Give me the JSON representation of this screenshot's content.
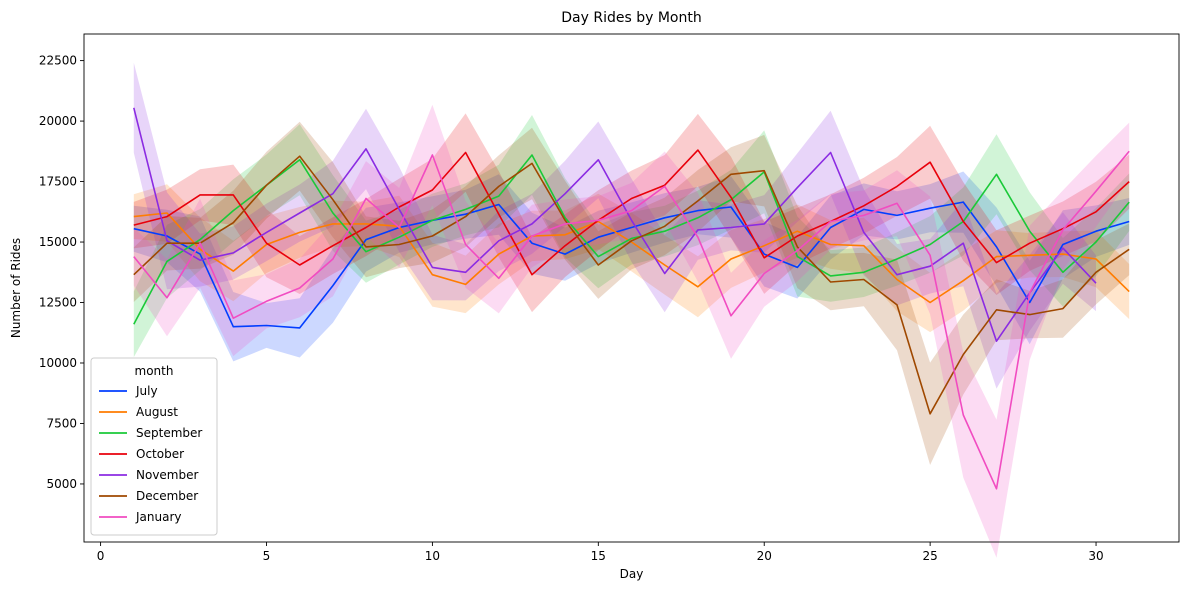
{
  "chart_data": {
    "type": "line",
    "title": "Day Rides by Month",
    "xlabel": "Day",
    "ylabel": "Number of Rides",
    "xlim": [
      -0.5,
      32.5
    ],
    "ylim": [
      2600,
      23600
    ],
    "xticks": [
      0,
      5,
      10,
      15,
      20,
      25,
      30
    ],
    "yticks": [
      5000,
      7500,
      10000,
      12500,
      15000,
      17500,
      20000,
      22500
    ],
    "grid": false,
    "legend": {
      "title": "month",
      "position": "lower-left"
    },
    "confidence_band": true,
    "series": [
      {
        "name": "July",
        "color": "#023eff",
        "x": [
          1,
          2,
          3,
          4,
          5,
          6,
          7,
          8,
          9,
          10,
          11,
          12,
          13,
          14,
          15,
          16,
          17,
          18,
          19,
          20,
          21,
          22,
          23,
          24,
          25,
          26,
          27,
          28,
          29,
          30,
          31
        ],
        "values": [
          15550,
          15250,
          14500,
          11500,
          11550,
          11450,
          13200,
          15100,
          15600,
          15900,
          16150,
          16550,
          14950,
          14500,
          15200,
          15600,
          16000,
          16300,
          16450,
          14500,
          13950,
          15600,
          16350,
          16100,
          16400,
          16650,
          14800,
          12500,
          14900,
          15450,
          15850
        ]
      },
      {
        "name": "August",
        "color": "#ff7c00",
        "x": [
          1,
          2,
          3,
          4,
          5,
          6,
          7,
          8,
          9,
          10,
          11,
          12,
          13,
          14,
          15,
          16,
          17,
          18,
          19,
          20,
          21,
          22,
          23,
          24,
          25,
          26,
          27,
          28,
          29,
          30,
          31
        ],
        "values": [
          16050,
          16200,
          14700,
          13800,
          14900,
          15400,
          15750,
          15750,
          15650,
          13650,
          13250,
          14500,
          15250,
          15300,
          15850,
          15000,
          14050,
          13150,
          14300,
          14850,
          15450,
          14900,
          14850,
          13450,
          12500,
          13400,
          14400,
          14450,
          14500,
          14300,
          12950
        ]
      },
      {
        "name": "September",
        "color": "#1ac938",
        "x": [
          1,
          2,
          3,
          4,
          5,
          6,
          7,
          8,
          9,
          10,
          11,
          12,
          13,
          14,
          15,
          16,
          17,
          18,
          19,
          20,
          21,
          22,
          23,
          24,
          25,
          26,
          27,
          28,
          29,
          30,
          31
        ],
        "values": [
          11600,
          14200,
          15100,
          16300,
          17350,
          18400,
          16200,
          14600,
          15200,
          15900,
          16350,
          16900,
          18600,
          16000,
          14400,
          15150,
          15450,
          16000,
          16750,
          17900,
          14400,
          13600,
          13750,
          14300,
          14900,
          15850,
          17800,
          15450,
          13750,
          15000,
          16650
        ]
      },
      {
        "name": "October",
        "color": "#e8000b",
        "x": [
          1,
          2,
          3,
          4,
          5,
          6,
          7,
          8,
          9,
          10,
          11,
          12,
          13,
          14,
          15,
          16,
          17,
          18,
          19,
          20,
          21,
          22,
          23,
          24,
          25,
          26,
          27,
          28,
          29,
          30,
          31
        ],
        "values": [
          15700,
          16050,
          16950,
          16950,
          14950,
          14050,
          14850,
          15600,
          16450,
          17150,
          18700,
          16150,
          13650,
          14850,
          15900,
          16800,
          17350,
          18800,
          16850,
          14350,
          15250,
          15850,
          16500,
          17300,
          18300,
          15850,
          14150,
          14950,
          15550,
          16250,
          17500
        ]
      },
      {
        "name": "November",
        "color": "#8b2be2",
        "x": [
          1,
          2,
          3,
          4,
          5,
          6,
          7,
          8,
          9,
          10,
          11,
          12,
          13,
          14,
          15,
          16,
          17,
          18,
          19,
          20,
          21,
          22,
          23,
          24,
          25,
          26,
          27,
          28,
          29,
          30,
          31
        ],
        "values": [
          20550,
          15050,
          14250,
          14550,
          15400,
          16200,
          17000,
          18850,
          16350,
          13950,
          13750,
          15050,
          15750,
          17000,
          18400,
          15900,
          13700,
          15500,
          15600,
          15750,
          17250,
          18700,
          15400,
          13650,
          14000,
          14950,
          10900,
          12900,
          14750,
          13300,
          null
        ]
      },
      {
        "name": "December",
        "color": "#9f4800",
        "x": [
          1,
          2,
          3,
          4,
          5,
          6,
          7,
          8,
          9,
          10,
          11,
          12,
          13,
          14,
          15,
          16,
          17,
          18,
          19,
          20,
          21,
          22,
          23,
          24,
          25,
          26,
          27,
          28,
          29,
          30,
          31
        ],
        "values": [
          13650,
          14950,
          14950,
          15800,
          17350,
          18550,
          16750,
          14800,
          14900,
          15250,
          16050,
          17300,
          18250,
          15900,
          14050,
          15050,
          15650,
          16700,
          17800,
          17950,
          14800,
          13350,
          13450,
          12400,
          7900,
          10350,
          12200,
          12000,
          12250,
          13750,
          14700
        ]
      },
      {
        "name": "January",
        "color": "#f14cc1",
        "x": [
          1,
          2,
          3,
          4,
          5,
          6,
          7,
          8,
          9,
          10,
          11,
          12,
          13,
          14,
          15,
          16,
          17,
          18,
          19,
          20,
          21,
          22,
          23,
          24,
          25,
          26,
          27,
          28,
          29,
          30,
          31
        ],
        "values": [
          14400,
          12700,
          14950,
          11850,
          12550,
          13100,
          14300,
          16800,
          15600,
          18600,
          14900,
          13500,
          15250,
          15750,
          15900,
          16300,
          17300,
          15200,
          11950,
          13700,
          14650,
          15850,
          16100,
          16600,
          14450,
          7850,
          4800,
          12900,
          15500,
          17100,
          18750
        ]
      }
    ]
  }
}
